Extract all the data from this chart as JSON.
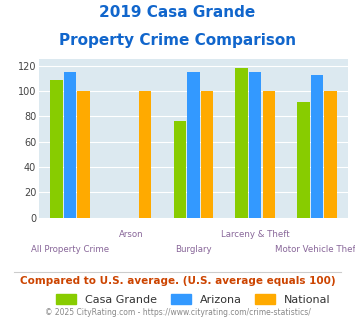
{
  "title_line1": "2019 Casa Grande",
  "title_line2": "Property Crime Comparison",
  "categories": [
    "All Property Crime",
    "Arson",
    "Burglary",
    "Larceny & Theft",
    "Motor Vehicle Theft"
  ],
  "top_labels": [
    "",
    "Arson",
    "",
    "Larceny & Theft",
    ""
  ],
  "bottom_labels": [
    "All Property Crime",
    "",
    "Burglary",
    "",
    "Motor Vehicle Theft"
  ],
  "series": {
    "Casa Grande": [
      109,
      0,
      76,
      118,
      91
    ],
    "Arizona": [
      115,
      0,
      115,
      115,
      113
    ],
    "National": [
      100,
      100,
      100,
      100,
      100
    ]
  },
  "colors": {
    "Casa Grande": "#88cc00",
    "Arizona": "#3399ff",
    "National": "#ffaa00"
  },
  "ylim": [
    0,
    125
  ],
  "yticks": [
    0,
    20,
    40,
    60,
    80,
    100,
    120
  ],
  "plot_bg": "#dce9f0",
  "footer_text": "Compared to U.S. average. (U.S. average equals 100)",
  "copyright_text": "© 2025 CityRating.com - https://www.cityrating.com/crime-statistics/",
  "title_color": "#1166cc",
  "footer_color": "#cc4400",
  "copyright_color": "#888888",
  "tick_label_color": "#886699",
  "bar_width": 0.22
}
